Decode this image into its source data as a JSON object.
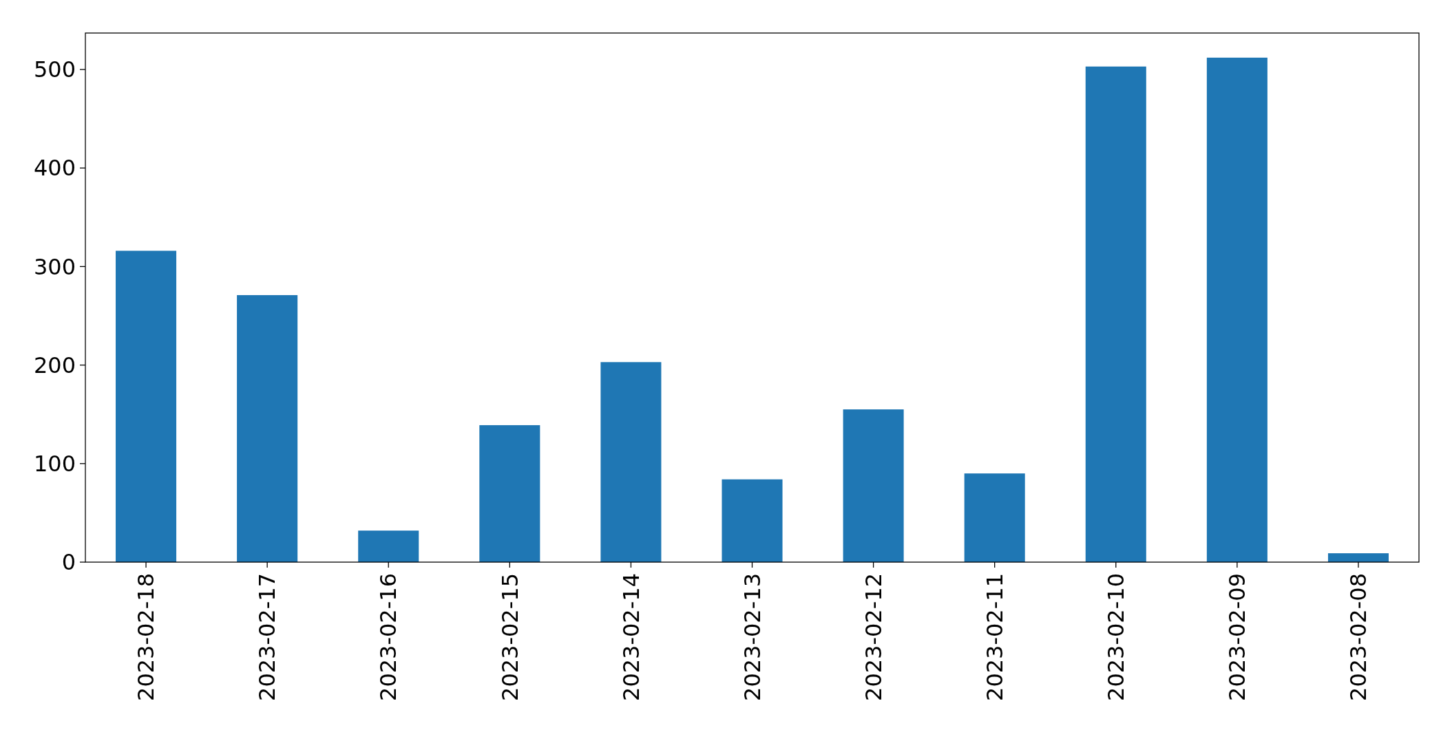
{
  "chart_data": {
    "type": "bar",
    "categories": [
      "2023-02-18",
      "2023-02-17",
      "2023-02-16",
      "2023-02-15",
      "2023-02-14",
      "2023-02-13",
      "2023-02-12",
      "2023-02-11",
      "2023-02-10",
      "2023-02-09",
      "2023-02-08"
    ],
    "values": [
      316,
      271,
      32,
      139,
      203,
      84,
      155,
      90,
      503,
      512,
      9
    ],
    "color": "#1f77b4",
    "ylim": [
      0,
      537
    ],
    "yticks": [
      0,
      100,
      200,
      300,
      400,
      500
    ],
    "grid": false
  }
}
